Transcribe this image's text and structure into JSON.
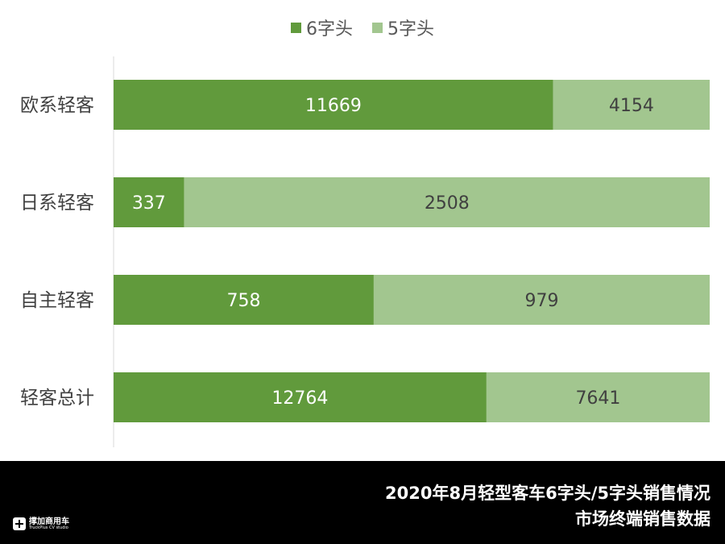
{
  "chart_data": {
    "type": "bar",
    "orientation": "horizontal",
    "stacked": true,
    "categories": [
      "欧系轻客",
      "日系轻客",
      "自主轻客",
      "轻客总计"
    ],
    "series": [
      {
        "name": "6字头",
        "values": [
          11669,
          337,
          758,
          12764
        ],
        "color": "#619a3c"
      },
      {
        "name": "5字头",
        "values": [
          4154,
          2508,
          979,
          7641
        ],
        "color": "#a2c68f"
      }
    ],
    "normalized": "percent",
    "legend_position": "top",
    "grid": false
  },
  "footer": {
    "title_line1": "2020年8月轻型客车6字头/5字头销售情况",
    "title_line2": "市场终端销售数据",
    "logo_cn": "撑加商用车",
    "logo_en": "TruckPlus CV studio"
  }
}
